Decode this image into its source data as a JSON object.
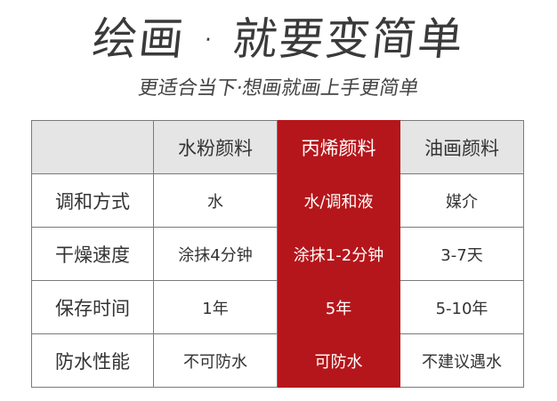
{
  "title": "绘画 · 就要变简单",
  "subtitle": "更适合当下·想画就画上手更简单",
  "accent_color": "#b5161b",
  "table": {
    "headers": [
      "",
      "水粉颜料",
      "丙烯颜料",
      "油画颜料"
    ],
    "rows": [
      {
        "label": "调和方式",
        "cells": [
          "水",
          "水/调和液",
          "媒介"
        ]
      },
      {
        "label": "干燥速度",
        "cells": [
          "涂抹4分钟",
          "涂抹1-2分钟",
          "3-7天"
        ]
      },
      {
        "label": "保存时间",
        "cells": [
          "1年",
          "5年",
          "5-10年"
        ]
      },
      {
        "label": "防水性能",
        "cells": [
          "不可防水",
          "可防水",
          "不建议遇水"
        ]
      }
    ]
  }
}
